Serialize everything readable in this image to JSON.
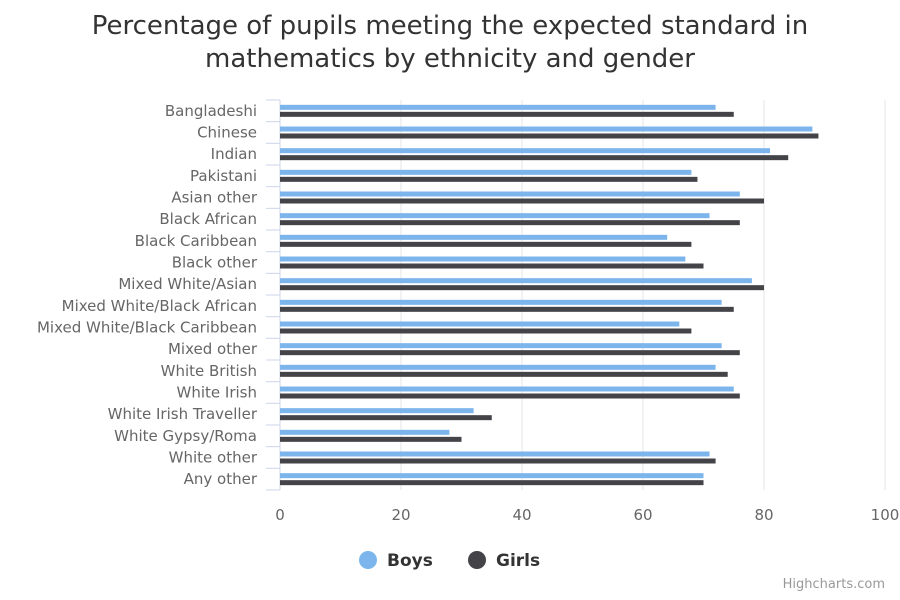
{
  "chart_data": {
    "type": "bar",
    "orientation": "horizontal",
    "title": "Percentage of pupils meeting the expected standard in\nmathematics by ethnicity and gender",
    "categories": [
      "Bangladeshi",
      "Chinese",
      "Indian",
      "Pakistani",
      "Asian other",
      "Black African",
      "Black Caribbean",
      "Black other",
      "Mixed White/Asian",
      "Mixed White/Black African",
      "Mixed White/Black Caribbean",
      "Mixed other",
      "White British",
      "White Irish",
      "White Irish Traveller",
      "White Gypsy/Roma",
      "White other",
      "Any other"
    ],
    "series": [
      {
        "name": "Boys",
        "color": "#7cb5ec",
        "values": [
          72,
          88,
          81,
          68,
          76,
          71,
          64,
          67,
          78,
          73,
          66,
          73,
          72,
          75,
          32,
          28,
          71,
          70
        ]
      },
      {
        "name": "Girls",
        "color": "#434348",
        "values": [
          75,
          89,
          84,
          69,
          80,
          76,
          68,
          70,
          80,
          75,
          68,
          76,
          74,
          76,
          35,
          30,
          72,
          70
        ]
      }
    ],
    "xlim": [
      0,
      100
    ],
    "ticks": [
      0,
      20,
      40,
      60,
      80,
      100
    ],
    "grid": true,
    "legend_position": "bottom-center"
  },
  "credit": "Highcharts.com"
}
